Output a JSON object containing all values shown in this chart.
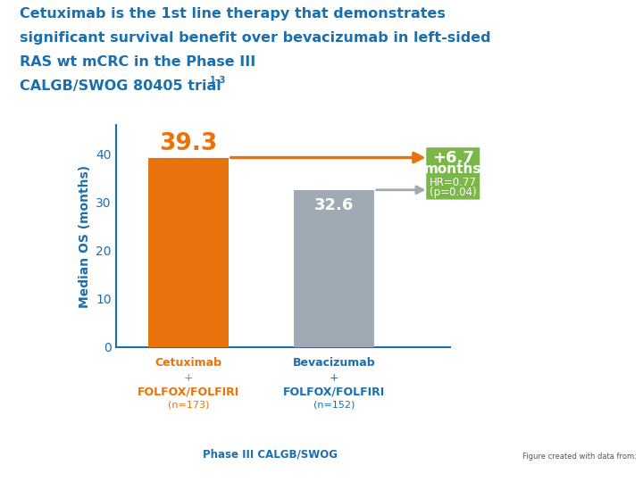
{
  "title_line1": "Cetuximab is the 1st line therapy that demonstrates",
  "title_line2": "significant survival benefit over bevacizumab in left-sided",
  "title_line3": "RAS wt mCRC in the Phase III",
  "title_line4": "CALGB/SWOG 80405 trial",
  "title_superscript": "1–3",
  "title_color": "#1a6faf",
  "bar_values": [
    39.3,
    32.6
  ],
  "bar_colors": [
    "#e8720c",
    "#a0aab4"
  ],
  "bar_value_color_1": "#e8720c",
  "bar_value_color_2": "#ffffff",
  "xlabel_color_1": "#e8720c",
  "xlabel_color_2": "#1a6faf",
  "ylabel": "Median OS (months)",
  "ylabel_color": "#1a6faf",
  "yticks": [
    0,
    10,
    20,
    30,
    40
  ],
  "ylim": [
    0,
    46
  ],
  "annotation_bg_color": "#7ab648",
  "subtitle_bottom": "Phase III CALGB/SWOG",
  "subtitle_bottom_color": "#1a6faf",
  "footnote_text": "Figure created with data from:",
  "background_color": "#ffffff",
  "axis_color": "#1a6faf",
  "tick_color": "#1a6faf"
}
